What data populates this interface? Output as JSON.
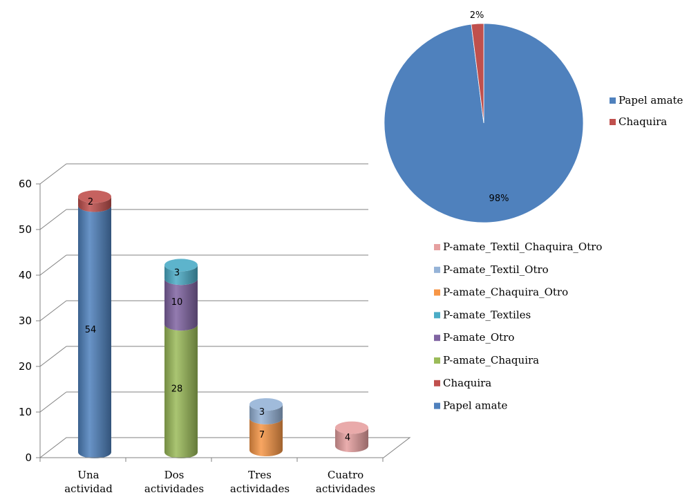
{
  "chart_data": [
    {
      "type": "pie",
      "slices": [
        {
          "name": "Papel amate",
          "value": 98,
          "label": "98%",
          "color": "#4F81BD"
        },
        {
          "name": "Chaquira",
          "value": 2,
          "label": "2%",
          "color": "#C0504D"
        }
      ],
      "legend_position": "right"
    },
    {
      "type": "bar",
      "stacked": true,
      "style": "3d-cylinder",
      "categories": [
        "Una actividad",
        "Dos actividades",
        "Tres actividades",
        "Cuatro actividades"
      ],
      "category_lines": [
        [
          "Una",
          "actividad"
        ],
        [
          "Dos",
          "actividades"
        ],
        [
          "Tres",
          "actividades"
        ],
        [
          "Cuatro",
          "actividades"
        ]
      ],
      "ylim": [
        0,
        60
      ],
      "yticks": [
        0,
        10,
        20,
        30,
        40,
        50,
        60
      ],
      "grid": true,
      "legend_position": "right",
      "series": [
        {
          "name": "Papel amate",
          "color": "#4F81BD",
          "values": [
            54,
            null,
            null,
            null
          ]
        },
        {
          "name": "Chaquira",
          "color": "#C0504D",
          "values": [
            2,
            null,
            null,
            null
          ]
        },
        {
          "name": "P-amate_Chaquira",
          "color": "#9BBB59",
          "values": [
            null,
            28,
            null,
            null
          ]
        },
        {
          "name": "P-amate_Otro",
          "color": "#8064A2",
          "values": [
            null,
            10,
            null,
            null
          ]
        },
        {
          "name": "P-amate_Textiles",
          "color": "#4BACC6",
          "values": [
            null,
            3,
            null,
            null
          ]
        },
        {
          "name": "P-amate_Chaquira_Otro",
          "color": "#F79646",
          "values": [
            null,
            null,
            7,
            null
          ]
        },
        {
          "name": "P-amate_Textil_Otro",
          "color": "#95B3D7",
          "values": [
            null,
            null,
            3,
            null
          ]
        },
        {
          "name": "P-amate_Textil_Chaquira_Otro",
          "color": "#E6A0A0",
          "values": [
            null,
            null,
            null,
            4
          ]
        }
      ],
      "legend_order": [
        "P-amate_Textil_Chaquira_Otro",
        "P-amate_Textil_Otro",
        "P-amate_Chaquira_Otro",
        "P-amate_Textiles",
        "P-amate_Otro",
        "P-amate_Chaquira",
        "Chaquira",
        "Papel amate"
      ]
    }
  ]
}
